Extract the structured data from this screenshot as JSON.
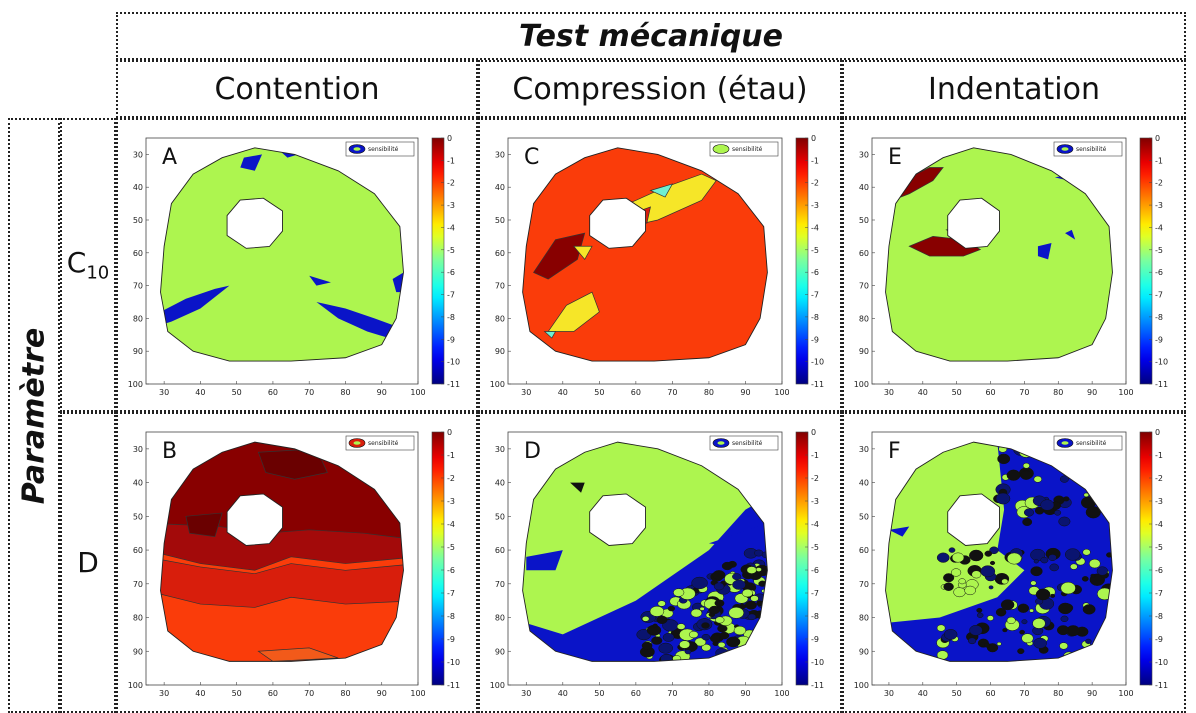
{
  "title": "Test mécanique",
  "row_group_label": "Paramètre",
  "columns": [
    "Contention",
    "Compression (étau)",
    "Indentation"
  ],
  "rows": [
    {
      "base": "C",
      "sub": "10"
    },
    {
      "base": "D",
      "sub": ""
    }
  ],
  "legend_label": "sensibilité",
  "colors": {
    "green": "#adf54f",
    "blue": "#0a14c8",
    "dark_red": "#880000",
    "red": "#d81e0c",
    "orange_red": "#fa3c0a",
    "yellow": "#f6e628",
    "cyan": "#6ff0d0",
    "outline": "#222222"
  },
  "chart_data": [
    {
      "type": "heatmap",
      "panel": "A",
      "column": "Contention",
      "row": "C10",
      "xlim": [
        25,
        100
      ],
      "ylim": [
        25,
        100
      ],
      "x_ticks": [
        30,
        40,
        50,
        60,
        70,
        80,
        90,
        100
      ],
      "y_ticks": [
        30,
        40,
        50,
        60,
        70,
        80,
        90,
        100
      ],
      "colorbar_ticks": [
        0,
        -1,
        -2,
        -3,
        -4,
        -5,
        -6,
        -7,
        -8,
        -9,
        -10,
        -11
      ],
      "legend": "sensibilité"
    },
    {
      "type": "heatmap",
      "panel": "B",
      "column": "Contention",
      "row": "D",
      "xlim": [
        25,
        100
      ],
      "ylim": [
        25,
        100
      ],
      "x_ticks": [
        30,
        40,
        50,
        60,
        70,
        80,
        90,
        100
      ],
      "y_ticks": [
        30,
        40,
        50,
        60,
        70,
        80,
        90,
        100
      ],
      "colorbar_ticks": [
        0,
        -1,
        -2,
        -3,
        -4,
        -5,
        -6,
        -7,
        -8,
        -9,
        -10,
        -11
      ],
      "legend": "sensibilité"
    },
    {
      "type": "heatmap",
      "panel": "C",
      "column": "Compression (étau)",
      "row": "C10",
      "xlim": [
        25,
        100
      ],
      "ylim": [
        25,
        100
      ],
      "x_ticks": [
        30,
        40,
        50,
        60,
        70,
        80,
        90,
        100
      ],
      "y_ticks": [
        30,
        40,
        50,
        60,
        70,
        80,
        90,
        100
      ],
      "colorbar_ticks": [
        0,
        -1,
        -2,
        -3,
        -4,
        -5,
        -6,
        -7,
        -8,
        -9,
        -10,
        -11
      ],
      "legend": "sensibilité"
    },
    {
      "type": "heatmap",
      "panel": "D",
      "column": "Compression (étau)",
      "row": "D",
      "xlim": [
        25,
        100
      ],
      "ylim": [
        25,
        100
      ],
      "x_ticks": [
        30,
        40,
        50,
        60,
        70,
        80,
        90,
        100
      ],
      "y_ticks": [
        30,
        40,
        50,
        60,
        70,
        80,
        90,
        100
      ],
      "colorbar_ticks": [
        0,
        -1,
        -2,
        -3,
        -4,
        -5,
        -6,
        -7,
        -8,
        -9,
        -10,
        -11
      ],
      "legend": "sensibilité"
    },
    {
      "type": "heatmap",
      "panel": "E",
      "column": "Indentation",
      "row": "C10",
      "xlim": [
        25,
        100
      ],
      "ylim": [
        25,
        100
      ],
      "x_ticks": [
        30,
        40,
        50,
        60,
        70,
        80,
        90,
        100
      ],
      "y_ticks": [
        30,
        40,
        50,
        60,
        70,
        80,
        90,
        100
      ],
      "colorbar_ticks": [
        0,
        -1,
        -2,
        -3,
        -4,
        -5,
        -6,
        -7,
        -8,
        -9,
        -10,
        -11
      ],
      "legend": "sensibilité"
    },
    {
      "type": "heatmap",
      "panel": "F",
      "column": "Indentation",
      "row": "D",
      "xlim": [
        25,
        100
      ],
      "ylim": [
        25,
        100
      ],
      "x_ticks": [
        30,
        40,
        50,
        60,
        70,
        80,
        90,
        100
      ],
      "y_ticks": [
        30,
        40,
        50,
        60,
        70,
        80,
        90,
        100
      ],
      "colorbar_ticks": [
        0,
        -1,
        -2,
        -3,
        -4,
        -5,
        -6,
        -7,
        -8,
        -9,
        -10,
        -11
      ],
      "legend": "sensibilité"
    }
  ]
}
